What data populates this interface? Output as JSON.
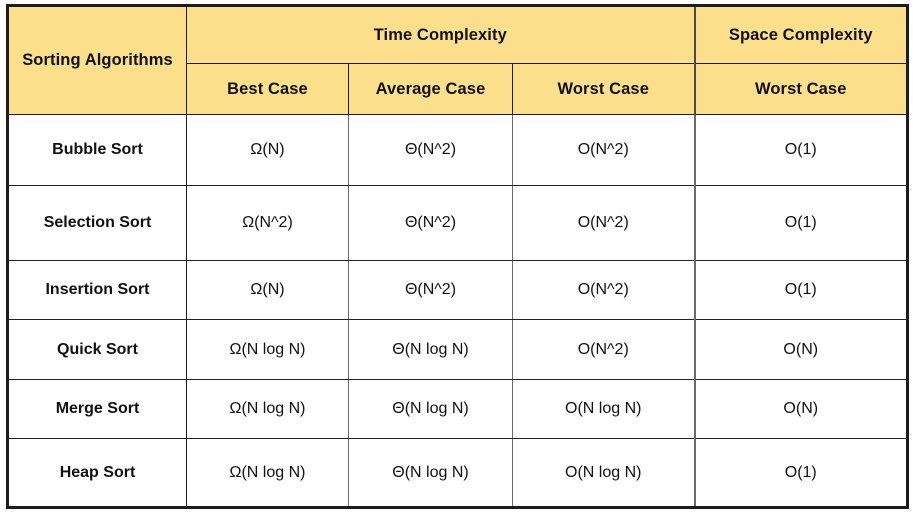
{
  "table": {
    "corner_header": "Sorting Algorithms",
    "group_headers": [
      {
        "label": "Time Complexity"
      },
      {
        "label": "Space Complexity"
      }
    ],
    "sub_headers": [
      "Best Case",
      "Average Case",
      "Worst Case",
      "Worst Case"
    ],
    "rows": [
      {
        "name": "Bubble Sort",
        "values": [
          "Ω(N)",
          "Θ(N^2)",
          "O(N^2)",
          "O(1)"
        ]
      },
      {
        "name": "Selection Sort",
        "values": [
          "Ω(N^2)",
          "Θ(N^2)",
          "O(N^2)",
          "O(1)"
        ]
      },
      {
        "name": "Insertion Sort",
        "values": [
          "Ω(N)",
          "Θ(N^2)",
          "O(N^2)",
          "O(1)"
        ]
      },
      {
        "name": "Quick Sort",
        "values": [
          "Ω(N log N)",
          "Θ(N log N)",
          "O(N^2)",
          "O(N)"
        ]
      },
      {
        "name": "Merge Sort",
        "values": [
          "Ω(N log N)",
          "Θ(N log N)",
          "O(N log N)",
          "O(N)"
        ]
      },
      {
        "name": "Heap Sort",
        "values": [
          "Ω(N log N)",
          "Θ(N log N)",
          "O(N log N)",
          "O(1)"
        ]
      }
    ]
  },
  "colors": {
    "header_bg": "#FBDF8B",
    "border_dark": "#1c1c1c",
    "border_gray": "#6a6a6a",
    "text": "#111111",
    "body_bg": "#ffffff"
  },
  "chart_data": {
    "type": "table",
    "columns": [
      "Sorting Algorithms",
      "Time Complexity / Best Case",
      "Time Complexity / Average Case",
      "Time Complexity / Worst Case",
      "Space Complexity / Worst Case"
    ],
    "rows": [
      [
        "Bubble Sort",
        "Ω(N)",
        "Θ(N^2)",
        "O(N^2)",
        "O(1)"
      ],
      [
        "Selection Sort",
        "Ω(N^2)",
        "Θ(N^2)",
        "O(N^2)",
        "O(1)"
      ],
      [
        "Insertion Sort",
        "Ω(N)",
        "Θ(N^2)",
        "O(N^2)",
        "O(1)"
      ],
      [
        "Quick Sort",
        "Ω(N log N)",
        "Θ(N log N)",
        "O(N^2)",
        "O(N)"
      ],
      [
        "Merge Sort",
        "Ω(N log N)",
        "Θ(N log N)",
        "O(N log N)",
        "O(N)"
      ],
      [
        "Heap Sort",
        "Ω(N log N)",
        "Θ(N log N)",
        "O(N log N)",
        "O(1)"
      ]
    ],
    "legend_position": "none",
    "grid": true
  }
}
